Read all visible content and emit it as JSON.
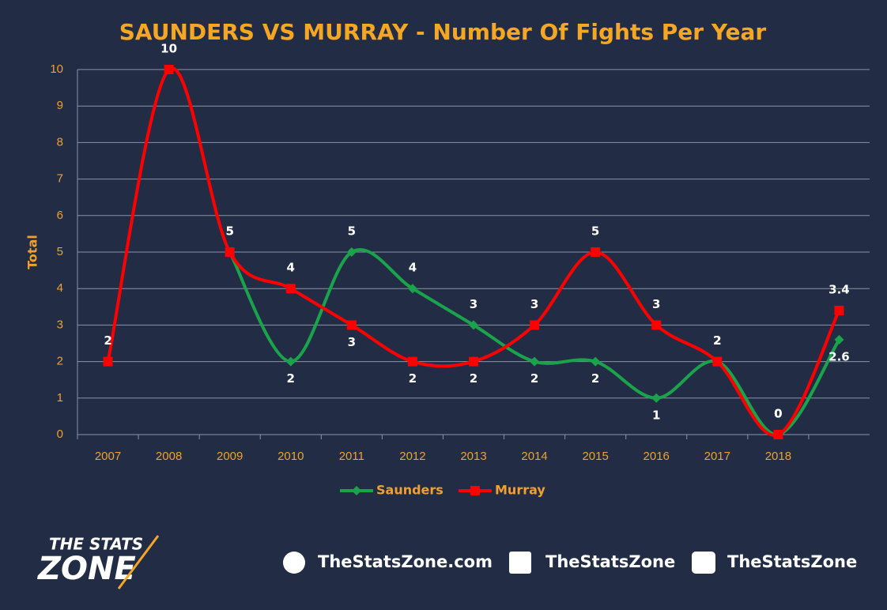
{
  "chart_data": {
    "type": "line",
    "title": "SAUNDERS VS MURRAY - Number Of Fights Per Year",
    "y_label": "Total",
    "categories": [
      "2007",
      "2008",
      "2009",
      "2010",
      "2011",
      "2012",
      "2013",
      "2014",
      "2015",
      "2016",
      "2017",
      "2018",
      null
    ],
    "series": [
      {
        "name": "Saunders",
        "color": "#1aa34a",
        "marker": "diamond",
        "values": [
          null,
          null,
          5,
          2,
          5,
          4,
          3,
          2,
          2,
          1,
          2,
          0,
          2.6
        ]
      },
      {
        "name": "Murray",
        "color": "#ff0000",
        "marker": "square",
        "values": [
          2,
          10,
          5,
          4,
          3,
          2,
          2,
          3,
          5,
          3,
          2,
          0,
          3.4
        ]
      }
    ],
    "ylim": [
      0,
      10
    ],
    "yticks": [
      0,
      1,
      2,
      3,
      4,
      5,
      6,
      7,
      8,
      9,
      10
    ],
    "grid": true,
    "smooth": true,
    "legend": "bottom"
  },
  "footer": {
    "logo_top": "THE STATS",
    "logo_bottom": "ZONE",
    "website": "TheStatsZone.com",
    "facebook": "TheStatsZone",
    "twitter": "TheStatsZone"
  }
}
